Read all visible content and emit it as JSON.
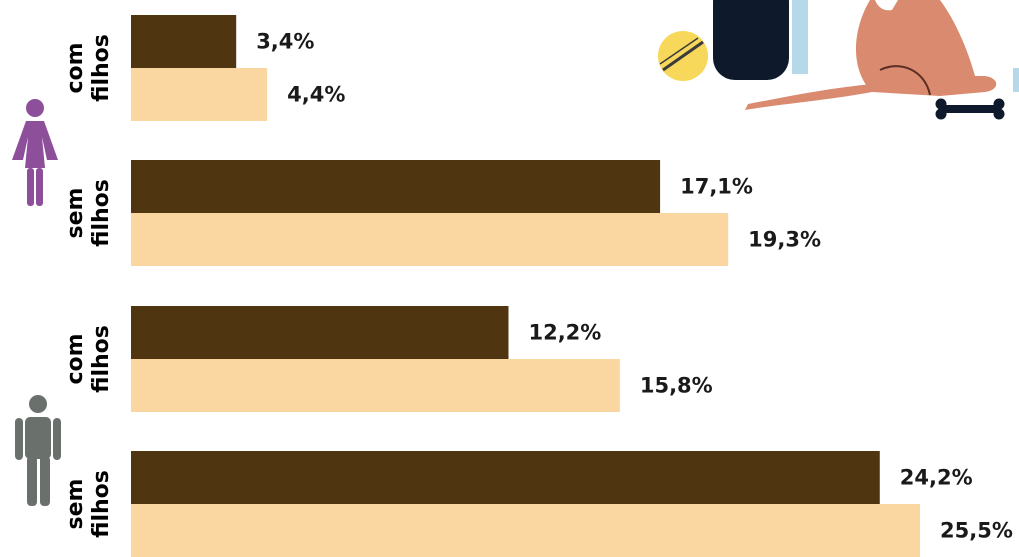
{
  "chart_data": {
    "type": "bar",
    "orientation": "horizontal",
    "categories": [
      "com filhos",
      "sem filhos",
      "com filhos",
      "sem filhos"
    ],
    "category_lines": [
      [
        "com",
        "filhos"
      ],
      [
        "sem",
        "filhos"
      ],
      [
        "com",
        "filhos"
      ],
      [
        "sem",
        "filhos"
      ]
    ],
    "category_gender": [
      "female-icon",
      "female-icon",
      "male-icon",
      "male-icon"
    ],
    "series": [
      {
        "values": [
          3.4,
          17.1,
          12.2,
          24.2
        ],
        "labels": [
          "3,4%",
          "17,1%",
          "12,2%",
          "24,2%"
        ],
        "color": "#4f3510"
      },
      {
        "values": [
          4.4,
          19.3,
          15.8,
          25.5
        ],
        "labels": [
          "4,4%",
          "19,3%",
          "15,8%",
          "25,5%"
        ],
        "color": "#fad7a1"
      }
    ],
    "xlim": [
      0,
      25.5
    ],
    "grid": false,
    "legend": "none"
  },
  "decoration": {
    "illustration": "dog-with-ball-and-bone-illustration",
    "colors": {
      "dog": "#d98a6f",
      "ball": "#f7d85a",
      "dark": "#0e1a2b",
      "light_blue": "#b6d9ea"
    }
  }
}
